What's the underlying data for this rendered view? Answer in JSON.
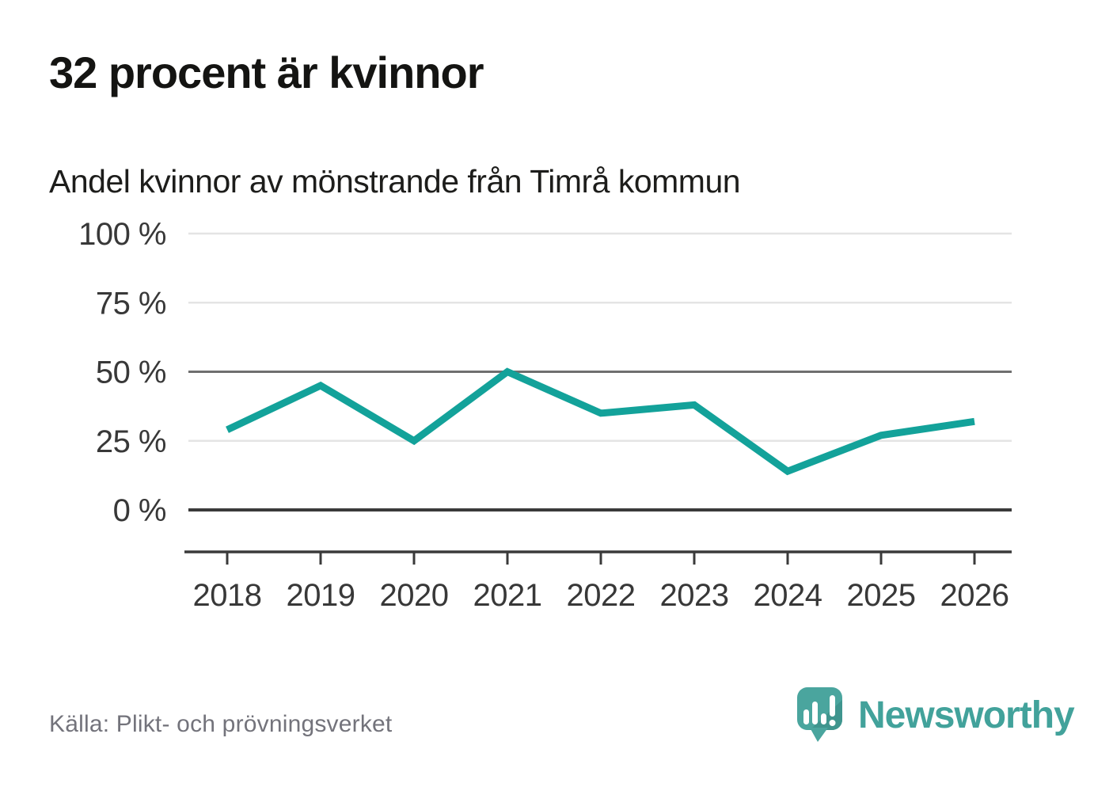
{
  "headline": "32 procent är kvinnor",
  "chart_title": "Andel kvinnor av mönstrande från Timrå kommun",
  "footer": {
    "source": "Källa: Plikt- och prövningsverket",
    "brand": "Newsworthy",
    "brand_icon": "speech-bubble-with-bar-chart-and-exclamation"
  },
  "colors": {
    "line": "#13a29a",
    "grid_light": "#e4e4e4",
    "grid_mid": "#6f6f6f",
    "axis_dark": "#3a3a3a",
    "tick_label": "#383838",
    "source_gray": "#73737b",
    "brand_teal": "#42a29b",
    "icon_teal": "#4aa59e",
    "icon_teal_dark": "#3f958e"
  },
  "chart_data": {
    "type": "line",
    "title": "32 procent är kvinnor",
    "subtitle": "Andel kvinnor av mönstrande från Timrå kommun",
    "x": [
      2018,
      2019,
      2020,
      2021,
      2022,
      2023,
      2024,
      2025,
      2026
    ],
    "xtick_labels": [
      "2018",
      "2019",
      "2020",
      "2021",
      "2022",
      "2023",
      "2024",
      "2025",
      "2026"
    ],
    "series": [
      {
        "name": "Andel kvinnor av mönstrande",
        "values": [
          29,
          45,
          25,
          50,
          35,
          38,
          14,
          27,
          32
        ]
      }
    ],
    "unit": "%",
    "ylim": [
      0,
      100
    ],
    "yticks": [
      0,
      25,
      50,
      75,
      100
    ],
    "ytick_labels": [
      "0 %",
      "25 %",
      "50 %",
      "75 %",
      "100 %"
    ],
    "grid": true,
    "legend": "none",
    "emphasized_gridlines": [
      0,
      50
    ],
    "source": "Källa: Plikt- och prövningsverket"
  }
}
